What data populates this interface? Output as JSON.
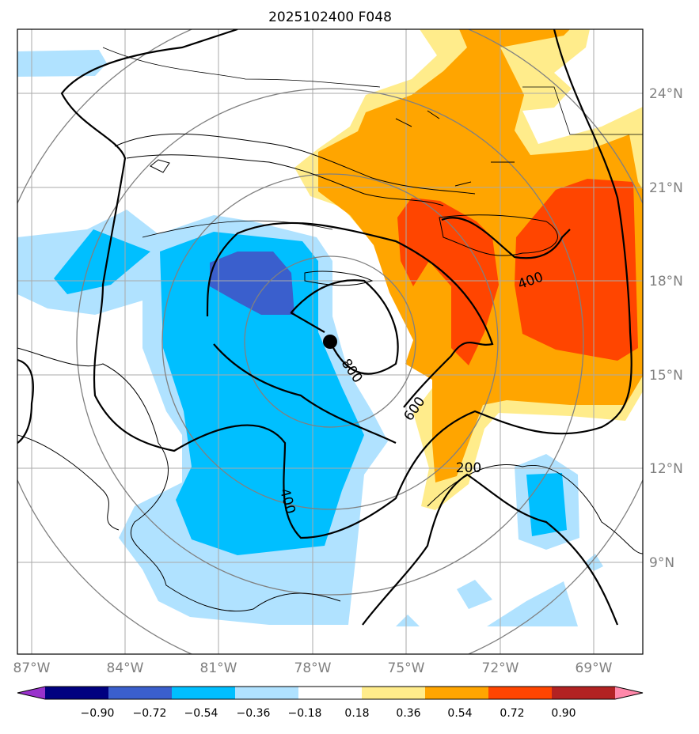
{
  "title": "2025102400 F048",
  "lat_labels": [
    "24°N",
    "21°N",
    "18°N",
    "15°N",
    "12°N",
    "9°N"
  ],
  "lon_labels": [
    "87°W",
    "84°W",
    "81°W",
    "78°W",
    "75°W",
    "72°W",
    "69°W"
  ],
  "contour_labels": [
    "400",
    "800",
    "600",
    "400",
    "200"
  ],
  "colorbar": {
    "ticks": [
      "−0.90",
      "−0.72",
      "−0.54",
      "−0.36",
      "−0.18",
      "0.18",
      "0.36",
      "0.54",
      "0.72",
      "0.90"
    ],
    "colors": [
      "#9932CC",
      "#000080",
      "#3A5FCD",
      "#00BFFF",
      "#B0E2FF",
      "#FFFFFF",
      "#FFEC8B",
      "#FFA500",
      "#FF4500",
      "#B22222",
      "#FF88AA"
    ]
  },
  "storm_center_marker": "filled-circle"
}
